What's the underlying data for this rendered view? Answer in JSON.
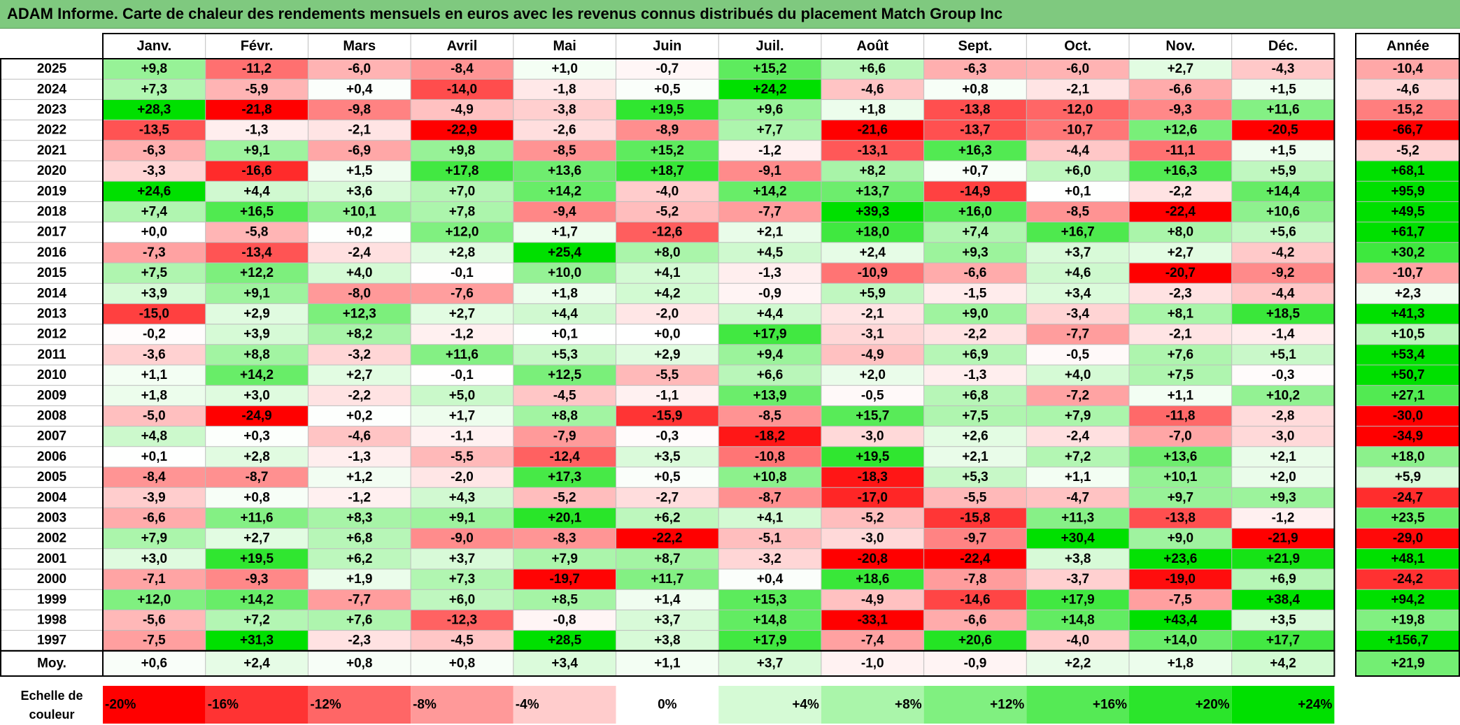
{
  "title": "ADAM Informe. Carte de chaleur des rendements mensuels en euros avec les revenus connus distribués du placement Match Group Inc",
  "chart_data": {
    "type": "heatmap",
    "months": [
      "Janv.",
      "Févr.",
      "Mars",
      "Avril",
      "Mai",
      "Juin",
      "Juil.",
      "Août",
      "Sept.",
      "Oct.",
      "Nov.",
      "Déc."
    ],
    "year_header": "Année",
    "rows": [
      {
        "year": "2025",
        "values": [
          9.8,
          -11.2,
          -6.0,
          -8.4,
          1.0,
          -0.7,
          15.2,
          6.6,
          -6.3,
          -6.0,
          2.7,
          -4.3
        ],
        "annual": -10.4
      },
      {
        "year": "2024",
        "values": [
          7.3,
          -5.9,
          0.4,
          -14.0,
          -1.8,
          0.5,
          24.2,
          -4.6,
          0.8,
          -2.1,
          -6.6,
          1.5
        ],
        "annual": -4.6
      },
      {
        "year": "2023",
        "values": [
          28.3,
          -21.8,
          -9.8,
          -4.9,
          -3.8,
          19.5,
          9.6,
          1.8,
          -13.8,
          -12.0,
          -9.3,
          11.6
        ],
        "annual": -15.2
      },
      {
        "year": "2022",
        "values": [
          -13.5,
          -1.3,
          -2.1,
          -22.9,
          -2.6,
          -8.9,
          7.7,
          -21.6,
          -13.7,
          -10.7,
          12.6,
          -20.5
        ],
        "annual": -66.7
      },
      {
        "year": "2021",
        "values": [
          -6.3,
          9.1,
          -6.9,
          9.8,
          -8.5,
          15.2,
          -1.2,
          -13.1,
          16.3,
          -4.4,
          -11.1,
          1.5
        ],
        "annual": -5.2
      },
      {
        "year": "2020",
        "values": [
          -3.3,
          -16.6,
          1.5,
          17.8,
          13.6,
          18.7,
          -9.1,
          8.2,
          0.7,
          6.0,
          16.3,
          5.9
        ],
        "annual": 68.1
      },
      {
        "year": "2019",
        "values": [
          24.6,
          4.4,
          3.6,
          7.0,
          14.2,
          -4.0,
          14.2,
          13.7,
          -14.9,
          0.1,
          -2.2,
          14.4
        ],
        "annual": 95.9
      },
      {
        "year": "2018",
        "values": [
          7.4,
          16.5,
          10.1,
          7.8,
          -9.4,
          -5.2,
          -7.7,
          39.3,
          16.0,
          -8.5,
          -22.4,
          10.6
        ],
        "annual": 49.5
      },
      {
        "year": "2017",
        "values": [
          0.0,
          -5.8,
          0.2,
          12.0,
          1.7,
          -12.6,
          2.1,
          18.0,
          7.4,
          16.7,
          8.0,
          5.6
        ],
        "annual": 61.7
      },
      {
        "year": "2016",
        "values": [
          -7.3,
          -13.4,
          -2.4,
          2.8,
          25.4,
          8.0,
          4.5,
          2.4,
          9.3,
          3.7,
          2.7,
          -4.2
        ],
        "annual": 30.2
      },
      {
        "year": "2015",
        "values": [
          7.5,
          12.2,
          4.0,
          -0.1,
          10.0,
          4.1,
          -1.3,
          -10.9,
          -6.6,
          4.6,
          -20.7,
          -9.2
        ],
        "annual": -10.7
      },
      {
        "year": "2014",
        "values": [
          3.9,
          9.1,
          -8.0,
          -7.6,
          1.8,
          4.2,
          -0.9,
          5.9,
          -1.5,
          3.4,
          -2.3,
          -4.4
        ],
        "annual": 2.3
      },
      {
        "year": "2013",
        "values": [
          -15.0,
          2.9,
          12.3,
          2.7,
          4.4,
          -2.0,
          4.4,
          -2.1,
          9.0,
          -3.4,
          8.1,
          18.5
        ],
        "annual": 41.3
      },
      {
        "year": "2012",
        "values": [
          -0.2,
          3.9,
          8.2,
          -1.2,
          0.1,
          0.0,
          17.9,
          -3.1,
          -2.2,
          -7.7,
          -2.1,
          -1.4
        ],
        "annual": 10.5
      },
      {
        "year": "2011",
        "values": [
          -3.6,
          8.8,
          -3.2,
          11.6,
          5.3,
          2.9,
          9.4,
          -4.9,
          6.9,
          -0.5,
          7.6,
          5.1
        ],
        "annual": 53.4
      },
      {
        "year": "2010",
        "values": [
          1.1,
          14.2,
          2.7,
          -0.1,
          12.5,
          -5.5,
          6.6,
          2.0,
          -1.3,
          4.0,
          7.5,
          -0.3
        ],
        "annual": 50.7
      },
      {
        "year": "2009",
        "values": [
          1.8,
          3.0,
          -2.2,
          5.0,
          -4.5,
          -1.1,
          13.9,
          -0.5,
          6.8,
          -7.2,
          1.1,
          10.2
        ],
        "annual": 27.1
      },
      {
        "year": "2008",
        "values": [
          -5.0,
          -24.9,
          0.2,
          1.7,
          8.8,
          -15.9,
          -8.5,
          15.7,
          7.5,
          7.9,
          -11.8,
          -2.8
        ],
        "annual": -30.0
      },
      {
        "year": "2007",
        "values": [
          4.8,
          0.3,
          -4.6,
          -1.1,
          -7.9,
          -0.3,
          -18.2,
          -3.0,
          2.6,
          -2.4,
          -7.0,
          -3.0
        ],
        "annual": -34.9
      },
      {
        "year": "2006",
        "values": [
          0.1,
          2.8,
          -1.3,
          -5.5,
          -12.4,
          3.5,
          -10.8,
          19.5,
          2.1,
          7.2,
          13.6,
          2.1
        ],
        "annual": 18.0
      },
      {
        "year": "2005",
        "values": [
          -8.4,
          -8.7,
          1.2,
          -2.0,
          17.3,
          0.5,
          10.8,
          -18.3,
          5.3,
          1.1,
          10.1,
          2.0
        ],
        "annual": 5.9
      },
      {
        "year": "2004",
        "values": [
          -3.9,
          0.8,
          -1.2,
          4.3,
          -5.2,
          -2.7,
          -8.7,
          -17.0,
          -5.5,
          -4.7,
          9.7,
          9.3
        ],
        "annual": -24.7
      },
      {
        "year": "2003",
        "values": [
          -6.6,
          11.6,
          8.3,
          9.1,
          20.1,
          6.2,
          4.1,
          -5.2,
          -15.8,
          11.3,
          -13.8,
          -1.2
        ],
        "annual": 23.5
      },
      {
        "year": "2002",
        "values": [
          7.9,
          2.7,
          6.8,
          -9.0,
          -8.3,
          -22.2,
          -5.1,
          -3.0,
          -9.7,
          30.4,
          9.0,
          -21.9
        ],
        "annual": -29.0
      },
      {
        "year": "2001",
        "values": [
          3.0,
          19.5,
          6.2,
          3.7,
          7.9,
          8.7,
          -3.2,
          -20.8,
          -22.4,
          3.8,
          23.6,
          21.9
        ],
        "annual": 48.1
      },
      {
        "year": "2000",
        "values": [
          -7.1,
          -9.3,
          1.9,
          7.3,
          -19.7,
          11.7,
          0.4,
          18.6,
          -7.8,
          -3.7,
          -19.0,
          6.9
        ],
        "annual": -24.2
      },
      {
        "year": "1999",
        "values": [
          12.0,
          14.2,
          -7.7,
          6.0,
          8.5,
          1.4,
          15.3,
          -4.9,
          -14.6,
          17.9,
          -7.5,
          38.4
        ],
        "annual": 94.2
      },
      {
        "year": "1998",
        "values": [
          -5.6,
          7.2,
          7.6,
          -12.3,
          -0.8,
          3.7,
          14.8,
          -33.1,
          -6.6,
          14.8,
          43.4,
          3.5
        ],
        "annual": 19.8
      },
      {
        "year": "1997",
        "values": [
          -7.5,
          31.3,
          -2.3,
          -4.5,
          28.5,
          3.8,
          17.9,
          -7.4,
          20.6,
          -4.0,
          14.0,
          17.7
        ],
        "annual": 156.7
      }
    ],
    "average": {
      "label": "Moy.",
      "values": [
        0.6,
        2.4,
        0.8,
        0.8,
        3.4,
        1.1,
        3.7,
        -1.0,
        -0.9,
        2.2,
        1.8,
        4.2
      ],
      "annual": 21.9
    },
    "scale": {
      "label_line1": "Echelle de",
      "label_line2": "couleur",
      "stops": [
        "-20%",
        "-16%",
        "-12%",
        "-8%",
        "-4%",
        "0%",
        "+4%",
        "+8%",
        "+12%",
        "+16%",
        "+20%",
        "+24%"
      ],
      "stop_values": [
        -20,
        -16,
        -12,
        -8,
        -4,
        0,
        4,
        8,
        12,
        16,
        20,
        24
      ]
    },
    "colors": {
      "negative": "#ff0000",
      "neutral": "#ffffff",
      "positive": "#00e000"
    },
    "color_limits": {
      "monthly": [
        -20,
        24
      ],
      "annual": [
        -30,
        40
      ]
    }
  }
}
